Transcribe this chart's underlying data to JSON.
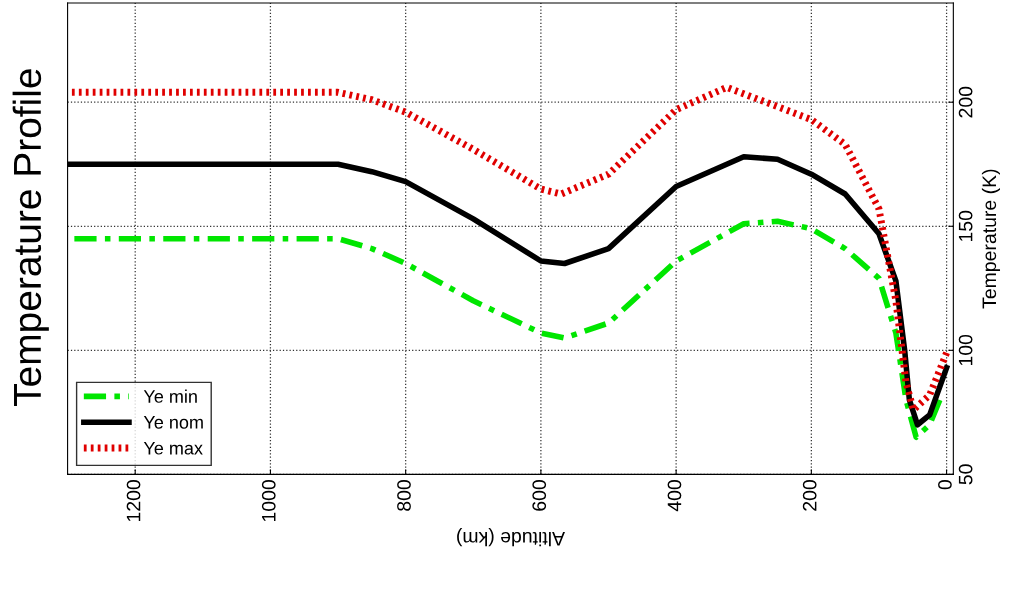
{
  "chart_data": {
    "type": "line",
    "title": "Temperature Profile",
    "xlabel": "Altitude (km)",
    "ylabel": "Temperature (K)",
    "xlim": [
      1300,
      -10
    ],
    "xticks": [
      0,
      200,
      400,
      600,
      800,
      1000,
      1200
    ],
    "ylim": [
      50,
      240
    ],
    "yticks": [
      50,
      100,
      150,
      200
    ],
    "grid": true,
    "legend": "bottom left",
    "series": [
      {
        "name": "Ye min",
        "color": "#00e600",
        "line_style": "dashed",
        "x": [
          1300,
          900,
          850,
          800,
          700,
          600,
          565,
          500,
          400,
          300,
          250,
          200,
          150,
          100,
          75,
          60,
          45,
          25,
          10
        ],
        "values": [
          145,
          145,
          141,
          135,
          120,
          107,
          105,
          111,
          136,
          151,
          152,
          149,
          141,
          129,
          107,
          80,
          65,
          70,
          80
        ]
      },
      {
        "name": "Ye nom",
        "color": "#000000",
        "line_style": "solid",
        "x": [
          1300,
          900,
          850,
          800,
          700,
          600,
          565,
          500,
          400,
          300,
          250,
          200,
          150,
          100,
          75,
          62,
          55,
          43,
          25,
          0
        ],
        "values": [
          175,
          175,
          172,
          168,
          153,
          136,
          135,
          141,
          166,
          178,
          177,
          171,
          163,
          147,
          128,
          100,
          80,
          70,
          74,
          93
        ]
      },
      {
        "name": "Ye max",
        "color": "#e00000",
        "line_style": "dotted",
        "x": [
          1300,
          900,
          850,
          800,
          700,
          600,
          570,
          500,
          400,
          325,
          200,
          150,
          100,
          75,
          60,
          49,
          25,
          0
        ],
        "values": [
          204,
          204,
          201,
          196,
          181,
          165,
          163,
          171,
          197,
          206,
          193,
          183,
          157,
          120,
          87,
          76,
          82,
          99
        ]
      }
    ]
  }
}
